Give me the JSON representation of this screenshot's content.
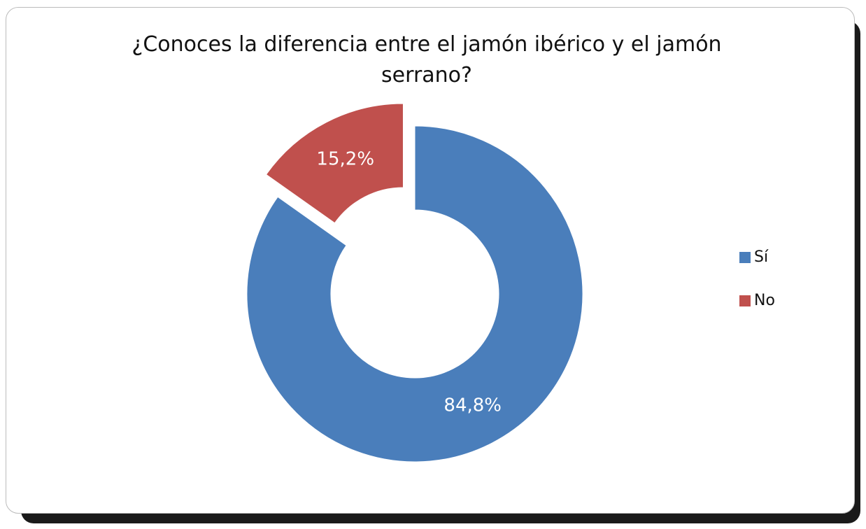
{
  "chart_data": {
    "type": "donut",
    "title": "¿Conoces la diferencia entre el jamón ibérico y el jamón serrano?",
    "categories": [
      "Sí",
      "No"
    ],
    "values": [
      84.8,
      15.2
    ],
    "value_labels": [
      "84,8%",
      "15,2%"
    ],
    "colors": [
      "#4a7ebb",
      "#c0504d"
    ],
    "exploded": [
      false,
      true
    ],
    "legend": "right"
  }
}
